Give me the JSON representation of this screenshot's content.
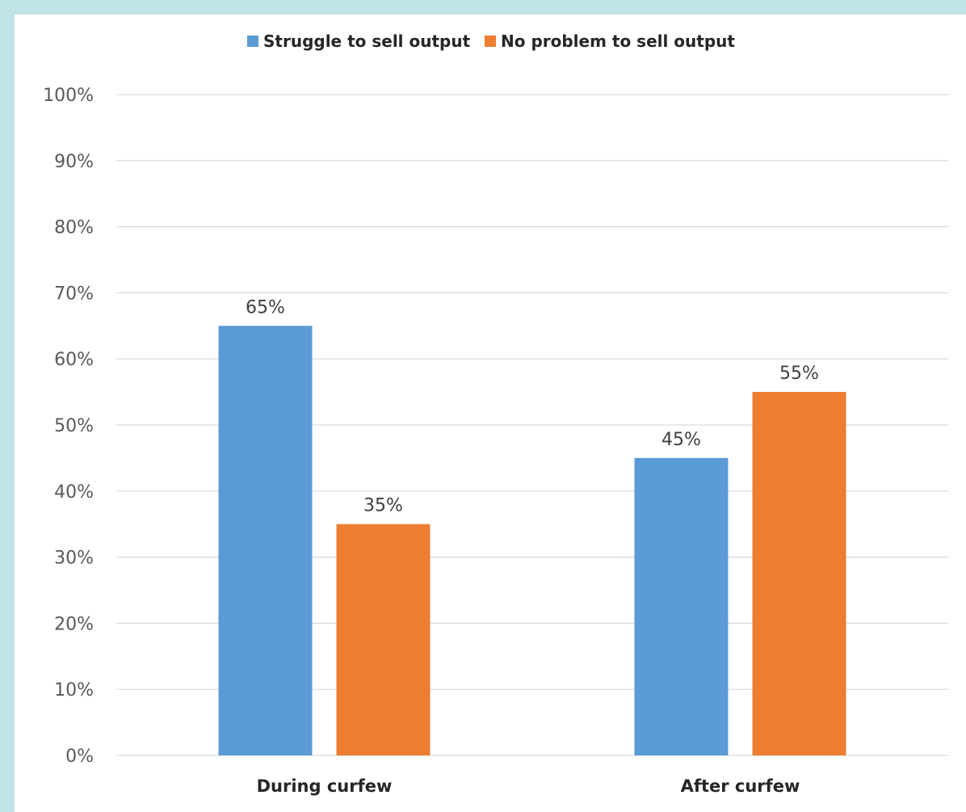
{
  "chart_data": {
    "type": "bar",
    "categories": [
      "During curfew",
      "After curfew"
    ],
    "series": [
      {
        "name": "Struggle to sell output",
        "values": [
          65,
          45
        ],
        "color": "#5b9bd5"
      },
      {
        "name": "No problem to sell output",
        "values": [
          35,
          55
        ],
        "color": "#ed7d31"
      }
    ],
    "data_labels": [
      [
        "65%",
        "45%"
      ],
      [
        "35%",
        "55%"
      ]
    ],
    "ylim": [
      0,
      100
    ],
    "yticks": [
      "0%",
      "10%",
      "20%",
      "30%",
      "40%",
      "50%",
      "60%",
      "70%",
      "80%",
      "90%",
      "100%"
    ],
    "grid": true,
    "legend_position": "top-center"
  },
  "colors": {
    "page_background": "#bfe3e6",
    "gridline": "#d9d9d9"
  }
}
